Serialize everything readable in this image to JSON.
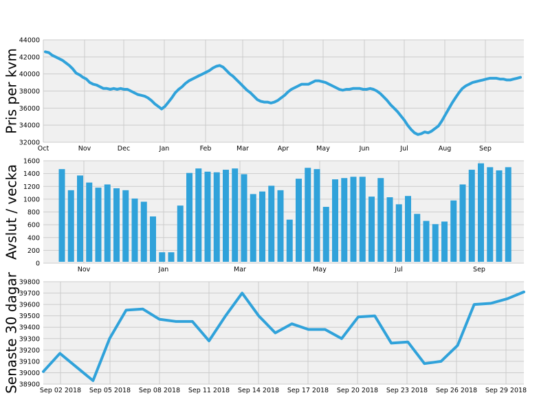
{
  "colors": {
    "series": "#30a2da",
    "panel_bg": "#f0f0f0",
    "grid": "#cbcbcb",
    "text": "#000000"
  },
  "chart_data": [
    {
      "type": "line",
      "ylabel": "Pris per kvm",
      "ylim": [
        32000,
        44000
      ],
      "y_ticks": [
        32000,
        34000,
        36000,
        38000,
        40000,
        42000,
        44000
      ],
      "x_tick_labels": [
        "Oct",
        "Nov",
        "Dec",
        "Jan",
        "Feb",
        "Mar",
        "Apr",
        "May",
        "Jun",
        "Jul",
        "Aug",
        "Sep"
      ],
      "grid": true,
      "series": [
        {
          "x_range": [
            "Oct 1",
            "end of Sep"
          ],
          "values": [
            42600,
            42500,
            42200,
            42000,
            41800,
            41600,
            41300,
            41000,
            40600,
            40100,
            39900,
            39600,
            39400,
            39000,
            38800,
            38700,
            38500,
            38300,
            38300,
            38200,
            38300,
            38200,
            38300,
            38200,
            38200,
            38000,
            37800,
            37600,
            37500,
            37400,
            37200,
            36900,
            36500,
            36200,
            35900,
            36200,
            36700,
            37200,
            37800,
            38200,
            38500,
            38900,
            39200,
            39400,
            39600,
            39800,
            40000,
            40200,
            40400,
            40700,
            40900,
            41000,
            40800,
            40400,
            40000,
            39700,
            39300,
            38900,
            38500,
            38100,
            37800,
            37400,
            37000,
            36800,
            36700,
            36700,
            36600,
            36700,
            36900,
            37200,
            37500,
            37900,
            38200,
            38400,
            38600,
            38800,
            38800,
            38800,
            39000,
            39200,
            39200,
            39100,
            39000,
            38800,
            38600,
            38400,
            38200,
            38100,
            38200,
            38200,
            38300,
            38300,
            38300,
            38200,
            38200,
            38300,
            38200,
            38000,
            37700,
            37300,
            36900,
            36400,
            36000,
            35600,
            35100,
            34600,
            34000,
            33500,
            33100,
            32900,
            33000,
            33200,
            33100,
            33300,
            33600,
            33900,
            34500,
            35200,
            35900,
            36600,
            37200,
            37800,
            38300,
            38600,
            38800,
            39000,
            39100,
            39200,
            39300,
            39400,
            39500,
            39500,
            39500,
            39400,
            39400,
            39300,
            39300,
            39400,
            39500,
            39600
          ]
        }
      ]
    },
    {
      "type": "bar",
      "ylabel": "Avslut / vecka",
      "ylim": [
        0,
        1600
      ],
      "y_ticks": [
        0,
        200,
        400,
        600,
        800,
        1000,
        1200,
        1400,
        1600
      ],
      "x_tick_labels": [
        "Nov",
        "Jan",
        "Mar",
        "May",
        "Jul",
        "Sep"
      ],
      "grid": true,
      "values": [
        1470,
        1140,
        1370,
        1260,
        1180,
        1230,
        1170,
        1140,
        1010,
        960,
        730,
        170,
        170,
        900,
        1410,
        1480,
        1430,
        1420,
        1460,
        1480,
        1390,
        1080,
        1120,
        1210,
        1140,
        680,
        1320,
        1490,
        1470,
        880,
        1310,
        1330,
        1350,
        1350,
        1040,
        1330,
        1030,
        920,
        1050,
        770,
        660,
        610,
        650,
        980,
        1230,
        1460,
        1560,
        1500,
        1450,
        1500
      ]
    },
    {
      "type": "line",
      "ylabel": "Senaste 30 dagar",
      "ylim": [
        38900,
        39800
      ],
      "y_ticks": [
        38900,
        39000,
        39100,
        39200,
        39300,
        39400,
        39500,
        39600,
        39700,
        39800
      ],
      "x_tick_labels": [
        "Sep 02 2018",
        "Sep 05 2018",
        "Sep 08 2018",
        "Sep 11 2018",
        "Sep 14 2018",
        "Sep 17 2018",
        "Sep 20 2018",
        "Sep 23 2018",
        "Sep 26 2018",
        "Sep 29 2018"
      ],
      "grid": true,
      "series": [
        {
          "x": [
            "2018-09-01",
            "2018-09-02",
            "2018-09-03",
            "2018-09-04",
            "2018-09-05",
            "2018-09-06",
            "2018-09-07",
            "2018-09-08",
            "2018-09-09",
            "2018-09-10",
            "2018-09-11",
            "2018-09-12",
            "2018-09-13",
            "2018-09-14",
            "2018-09-15",
            "2018-09-16",
            "2018-09-17",
            "2018-09-18",
            "2018-09-19",
            "2018-09-20",
            "2018-09-21",
            "2018-09-22",
            "2018-09-23",
            "2018-09-24",
            "2018-09-25",
            "2018-09-26",
            "2018-09-27",
            "2018-09-28",
            "2018-09-29",
            "2018-09-30"
          ],
          "values": [
            39010,
            39170,
            39050,
            38930,
            39300,
            39550,
            39560,
            39470,
            39450,
            39450,
            39280,
            39500,
            39700,
            39500,
            39350,
            39430,
            39380,
            39380,
            39300,
            39490,
            39500,
            39260,
            39270,
            39080,
            39100,
            39240,
            39600,
            39610,
            39650,
            39710
          ]
        }
      ]
    }
  ]
}
